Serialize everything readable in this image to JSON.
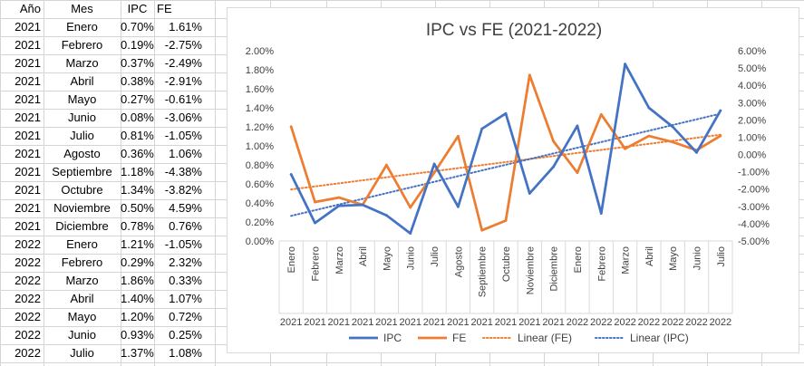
{
  "table": {
    "headers": [
      "Año",
      "Mes",
      "IPC",
      "FE"
    ],
    "rows": [
      [
        "2021",
        "Enero",
        "0.70%",
        "1.61%"
      ],
      [
        "2021",
        "Febrero",
        "0.19%",
        "-2.75%"
      ],
      [
        "2021",
        "Marzo",
        "0.37%",
        "-2.49%"
      ],
      [
        "2021",
        "Abril",
        "0.38%",
        "-2.91%"
      ],
      [
        "2021",
        "Mayo",
        "0.27%",
        "-0.61%"
      ],
      [
        "2021",
        "Junio",
        "0.08%",
        "-3.06%"
      ],
      [
        "2021",
        "Julio",
        "0.81%",
        "-1.05%"
      ],
      [
        "2021",
        "Agosto",
        "0.36%",
        "1.06%"
      ],
      [
        "2021",
        "Septiembre",
        "1.18%",
        "-4.38%"
      ],
      [
        "2021",
        "Octubre",
        "1.34%",
        "-3.82%"
      ],
      [
        "2021",
        "Noviembre",
        "0.50%",
        "4.59%"
      ],
      [
        "2021",
        "Diciembre",
        "0.78%",
        "0.76%"
      ],
      [
        "2022",
        "Enero",
        "1.21%",
        "-1.05%"
      ],
      [
        "2022",
        "Febrero",
        "0.29%",
        "2.32%"
      ],
      [
        "2022",
        "Marzo",
        "1.86%",
        "0.33%"
      ],
      [
        "2022",
        "Abril",
        "1.40%",
        "1.07%"
      ],
      [
        "2022",
        "Mayo",
        "1.20%",
        "0.72%"
      ],
      [
        "2022",
        "Junio",
        "0.93%",
        "0.25%"
      ],
      [
        "2022",
        "Julio",
        "1.37%",
        "1.08%"
      ]
    ]
  },
  "chart_data": {
    "type": "line",
    "title": "IPC vs FE (2021-2022)",
    "categories": [
      "Enero",
      "Febrero",
      "Marzo",
      "Abril",
      "Mayo",
      "Junio",
      "Julio",
      "Agosto",
      "Septiembre",
      "Octubre",
      "Noviembre",
      "Diciembre",
      "Enero",
      "Febrero",
      "Marzo",
      "Abril",
      "Mayo",
      "Junio",
      "Julio"
    ],
    "years": [
      "2021",
      "2021",
      "2021",
      "2021",
      "2021",
      "2021",
      "2021",
      "2021",
      "2021",
      "2021",
      "2021",
      "2021",
      "2022",
      "2022",
      "2022",
      "2022",
      "2022",
      "2022",
      "2022"
    ],
    "series": [
      {
        "name": "IPC",
        "axis": "left",
        "color": "#4472c4",
        "values": [
          0.7,
          0.19,
          0.37,
          0.38,
          0.27,
          0.08,
          0.81,
          0.36,
          1.18,
          1.34,
          0.5,
          0.78,
          1.21,
          0.29,
          1.86,
          1.4,
          1.2,
          0.93,
          1.37
        ]
      },
      {
        "name": "FE",
        "axis": "right",
        "color": "#ed7d31",
        "values": [
          1.61,
          -2.75,
          -2.49,
          -2.91,
          -0.61,
          -3.06,
          -1.05,
          1.06,
          -4.38,
          -3.82,
          4.59,
          0.76,
          -1.05,
          2.32,
          0.33,
          1.07,
          0.72,
          0.25,
          1.08
        ]
      }
    ],
    "trendlines": [
      {
        "name": "Linear (FE)",
        "of": "FE",
        "color": "#ed7d31"
      },
      {
        "name": "Linear (IPC)",
        "of": "IPC",
        "color": "#4472c4"
      }
    ],
    "y_left": {
      "min": 0,
      "max": 2.0,
      "step": 0.2,
      "ticks": [
        "0.00%",
        "0.20%",
        "0.40%",
        "0.60%",
        "0.80%",
        "1.00%",
        "1.20%",
        "1.40%",
        "1.60%",
        "1.80%",
        "2.00%"
      ]
    },
    "y_right": {
      "min": -5,
      "max": 6,
      "step": 1,
      "ticks": [
        "-5.00%",
        "-4.00%",
        "-3.00%",
        "-2.00%",
        "-1.00%",
        "0.00%",
        "1.00%",
        "2.00%",
        "3.00%",
        "4.00%",
        "5.00%",
        "6.00%"
      ]
    },
    "legend": [
      "IPC",
      "FE",
      "Linear (FE)",
      "Linear (IPC)"
    ],
    "legend_position": "bottom",
    "grid": false
  }
}
